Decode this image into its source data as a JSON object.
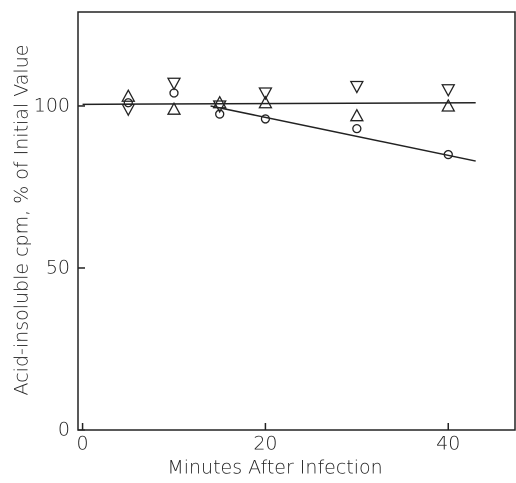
{
  "chart_data": {
    "type": "scatter",
    "x_label": "Minutes After Infection",
    "y_label": "Acid-insoluble cpm, % of Initial Value",
    "xlim": [
      -0.5,
      47.3
    ],
    "ylim": [
      0,
      129
    ],
    "xticks": [
      0,
      20,
      40
    ],
    "yticks": [
      0,
      50,
      100
    ],
    "series": [
      {
        "marker": "triangle-up",
        "color": "#222",
        "x": [
          5,
          10,
          15,
          20,
          30,
          40
        ],
        "values": [
          103,
          99,
          101,
          101,
          97,
          100
        ]
      },
      {
        "marker": "triangle-down",
        "color": "#222",
        "x": [
          5,
          10,
          15,
          20,
          30,
          40
        ],
        "values": [
          99,
          107,
          100,
          104,
          106,
          105
        ]
      },
      {
        "marker": "circle",
        "color": "#222",
        "x": [
          5,
          10,
          15,
          20,
          30,
          40
        ],
        "values": [
          101,
          104,
          97.5,
          96,
          93,
          85
        ]
      },
      {
        "marker": "none",
        "line": true,
        "color": "#222",
        "x": [
          0,
          43
        ],
        "values": [
          100.5,
          101
        ]
      },
      {
        "marker": "none",
        "line": true,
        "color": "#222",
        "x": [
          14,
          43
        ],
        "values": [
          100,
          83
        ]
      }
    ]
  }
}
